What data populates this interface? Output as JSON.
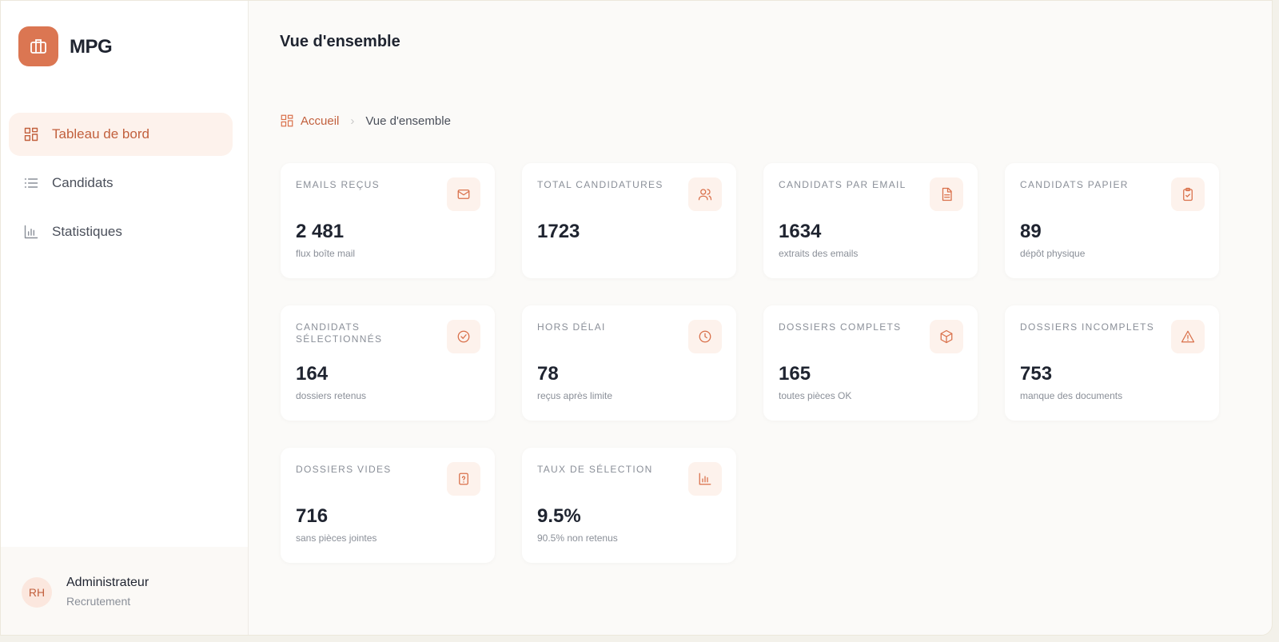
{
  "sidebar": {
    "brand": "MPG",
    "nav": [
      {
        "label": "Tableau de bord",
        "active": true
      },
      {
        "label": "Candidats",
        "active": false
      },
      {
        "label": "Statistiques",
        "active": false
      }
    ],
    "user": {
      "initials": "RH",
      "name": "Administrateur",
      "role": "Recrutement"
    }
  },
  "header": {
    "title": "Vue d'ensemble"
  },
  "breadcrumb": [
    "Accueil",
    "Vue d'ensemble"
  ],
  "cards": [
    {
      "label": "EMAILS REÇUS",
      "value": "2 481",
      "caption": "flux boîte mail"
    },
    {
      "label": "TOTAL CANDIDATURES",
      "value": "1723"
    },
    {
      "label": "CANDIDATS PAR EMAIL",
      "value": "1634",
      "caption": "extraits des emails"
    },
    {
      "label": "CANDIDATS PAPIER",
      "value": "89",
      "caption": "dépôt physique"
    },
    {
      "label": "CANDIDATS SÉLECTIONNÉS",
      "value": "164",
      "caption": "dossiers retenus"
    },
    {
      "label": "HORS DÉLAI",
      "value": "78",
      "caption": "reçus après limite"
    },
    {
      "label": "DOSSIERS COMPLETS",
      "value": "165",
      "caption": "toutes pièces OK"
    },
    {
      "label": "DOSSIERS INCOMPLETS",
      "value": "753",
      "caption": "manque des documents"
    },
    {
      "label": "DOSSIERS VIDES",
      "value": "716",
      "caption": "sans pièces jointes"
    },
    {
      "label": "TAUX DE SÉLECTION",
      "value": "9.5%",
      "caption": "90.5% non retenus"
    }
  ]
}
